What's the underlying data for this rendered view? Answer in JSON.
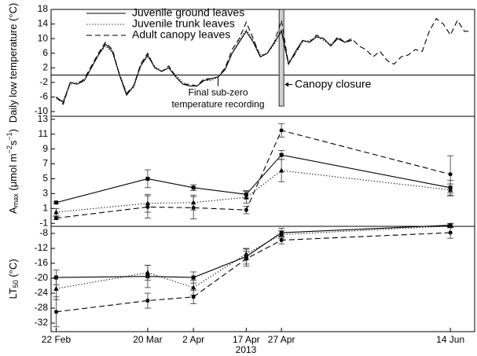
{
  "chart_data": [
    {
      "type": "line",
      "y_label": [
        {
          "text": "Daily low temperature (°C)"
        }
      ],
      "x": [
        "2013-02-22",
        "2013-02-24",
        "2013-02-26",
        "2013-02-28",
        "2013-03-02",
        "2013-03-04",
        "2013-03-06",
        "2013-03-08",
        "2013-03-10",
        "2013-03-12",
        "2013-03-14",
        "2013-03-16",
        "2013-03-18",
        "2013-03-20",
        "2013-03-22",
        "2013-03-24",
        "2013-03-26",
        "2013-03-28",
        "2013-03-30",
        "2013-04-01",
        "2013-04-03",
        "2013-04-05",
        "2013-04-07",
        "2013-04-09",
        "2013-04-11",
        "2013-04-13",
        "2013-04-15",
        "2013-04-17",
        "2013-04-19",
        "2013-04-21",
        "2013-04-23",
        "2013-04-25",
        "2013-04-27",
        "2013-04-29",
        "2013-05-01",
        "2013-05-03",
        "2013-05-05",
        "2013-05-07",
        "2013-05-09",
        "2013-05-11",
        "2013-05-13",
        "2013-05-15",
        "2013-05-17",
        "2013-05-19",
        "2013-05-21",
        "2013-05-23",
        "2013-05-25",
        "2013-05-27",
        "2013-05-29",
        "2013-05-31",
        "2013-06-02",
        "2013-06-04",
        "2013-06-06",
        "2013-06-08",
        "2013-06-10",
        "2013-06-12",
        "2013-06-14",
        "2013-06-16",
        "2013-06-18",
        "2013-06-20"
      ],
      "series": [
        {
          "name": "Juvenile ground leaves",
          "color": "#000000",
          "dash": "solid",
          "values": [
            -6,
            -7.5,
            -2,
            -2.5,
            -1.5,
            2,
            5.5,
            8.5,
            6.5,
            0,
            -5.5,
            -3,
            2.5,
            5.5,
            2,
            1,
            2,
            -0.5,
            -2.5,
            -3,
            -3,
            -1.5,
            -1,
            -0.5,
            1.5,
            6,
            9,
            12,
            9,
            5,
            6,
            9,
            12,
            3,
            6.5,
            9.5,
            9,
            10.5,
            10,
            8,
            10,
            9,
            9.5,
            null,
            null,
            null,
            null,
            null,
            null,
            null,
            null,
            null,
            null,
            null,
            null,
            null,
            null,
            null,
            null,
            null
          ]
        },
        {
          "name": "Juvenile trunk leaves",
          "color": "#000000",
          "dash": "dotted",
          "values": [
            -6.5,
            -7,
            -2.5,
            -2,
            -1.5,
            2,
            5.5,
            8,
            6,
            0.5,
            -5,
            -3.5,
            2.5,
            5,
            2.5,
            1,
            2,
            0,
            -2,
            -3,
            -3,
            -1.5,
            -1.5,
            -0.5,
            1.5,
            6,
            9.5,
            12.5,
            9.5,
            5.5,
            6,
            8.5,
            12.5,
            3.5,
            6,
            9,
            9.5,
            10.5,
            9.5,
            8.5,
            10,
            9,
            9.5,
            null,
            null,
            null,
            null,
            null,
            null,
            null,
            null,
            null,
            null,
            null,
            null,
            null,
            null,
            null,
            null,
            null
          ]
        },
        {
          "name": "Adult canopy leaves",
          "color": "#000000",
          "dash": "dashed",
          "values": [
            -6,
            -8,
            -2,
            -2.5,
            -1,
            2.5,
            6,
            9,
            7,
            0,
            -5,
            -3,
            3,
            6,
            2,
            1,
            2.5,
            -0.5,
            -2.5,
            -2.5,
            -3,
            -1,
            -1,
            -0.5,
            2,
            7,
            10,
            14.5,
            10,
            5,
            6,
            9,
            15,
            3,
            6,
            9.5,
            9,
            11,
            10,
            8,
            10.5,
            9,
            10,
            8,
            7,
            5,
            6.5,
            4,
            3,
            5,
            5.5,
            7,
            6.5,
            12,
            15.5,
            14,
            11,
            15,
            12,
            12
          ]
        }
      ],
      "reference_line": 0,
      "annotations": [
        {
          "text": [
            "Final sub-zero",
            "temperature recording"
          ],
          "x": "2013-04-09"
        },
        {
          "text": [
            "Canopy closure"
          ],
          "x": "2013-04-27"
        }
      ],
      "xlim": [
        "2013-02-21",
        "2013-06-20"
      ],
      "ylim": [
        -11.3,
        18
      ],
      "yticks": [
        18,
        14,
        10,
        6,
        2,
        -2,
        -6,
        -10
      ]
    },
    {
      "type": "line",
      "y_label": [
        {
          "text": "A"
        },
        {
          "text": "max",
          "sub": true
        },
        {
          "text": " (μmol m"
        },
        {
          "text": "−2",
          "sup": true
        },
        {
          "text": "s"
        },
        {
          "text": "−1",
          "sup": true
        },
        {
          "text": ")"
        }
      ],
      "x": [
        "2013-02-22",
        "2013-03-20",
        "2013-04-02",
        "2013-04-17",
        "2013-04-27",
        "2013-06-14"
      ],
      "series": [
        {
          "color": "#000000",
          "dash": "solid",
          "marker": "square",
          "values": [
            1.8,
            5.0,
            3.8,
            2.9,
            8.2,
            3.8
          ],
          "errors": [
            0.1,
            1.2,
            0.4,
            0.5,
            0.6,
            1.0
          ]
        },
        {
          "color": "#000000",
          "dash": "dotted",
          "marker": "triangle",
          "values": [
            0.5,
            1.7,
            1.8,
            2.5,
            6.1,
            3.5
          ],
          "errors": [
            0.5,
            1.2,
            1.0,
            0.8,
            1.5,
            0.8
          ]
        },
        {
          "color": "#000000",
          "dash": "dashed",
          "marker": "circle",
          "values": [
            -0.3,
            1.2,
            1.1,
            0.8,
            11.5,
            5.6
          ],
          "errors": [
            0.2,
            1.5,
            1.5,
            0.5,
            0.9,
            2.5
          ]
        }
      ],
      "xlim": [
        "2013-02-21",
        "2013-06-20"
      ],
      "ylim": [
        -1.4,
        13.4
      ],
      "yticks": [
        13,
        11,
        9,
        7,
        5,
        3,
        1,
        -1
      ]
    },
    {
      "type": "line",
      "y_label": [
        {
          "text": "LT"
        },
        {
          "text": "50",
          "sub": true
        },
        {
          "text": " (°C)"
        }
      ],
      "x": [
        "2013-02-22",
        "2013-03-20",
        "2013-04-02",
        "2013-04-17",
        "2013-04-27",
        "2013-06-14"
      ],
      "series": [
        {
          "color": "#000000",
          "dash": "solid",
          "marker": "square",
          "values": [
            -19.8,
            -19.5,
            -19.8,
            -14.2,
            -7.8,
            -5.8
          ],
          "errors": [
            2,
            3,
            1.5,
            2,
            1.2,
            0.5
          ]
        },
        {
          "color": "#000000",
          "dash": "dotted",
          "marker": "triangle",
          "values": [
            -22.8,
            -18.5,
            -22.5,
            -13.5,
            -8.3,
            -6.0
          ],
          "errors": [
            3,
            2,
            2,
            1.5,
            1,
            0.5
          ]
        },
        {
          "color": "#000000",
          "dash": "dashed",
          "marker": "circle",
          "values": [
            -29,
            -26,
            -25,
            -14.8,
            -9.8,
            -7.8
          ],
          "errors": [
            4,
            2,
            1.8,
            2,
            1,
            1.5
          ]
        }
      ],
      "xlim": [
        "2013-02-21",
        "2013-06-20"
      ],
      "ylim": [
        -34.3,
        -6.1
      ],
      "yticks": [
        -8,
        -12,
        -16,
        -20,
        -24,
        -28,
        -32
      ],
      "xticks": [
        {
          "value": "2013-02-22",
          "label": "22 Feb"
        },
        {
          "value": "2013-03-20",
          "label": "20 Mar"
        },
        {
          "value": "2013-04-02",
          "label": "2 Apr"
        },
        {
          "value": "2013-04-17",
          "label": "17 Apr"
        },
        {
          "value": "2013-04-27",
          "label": "27 Apr"
        },
        {
          "value": "2013-06-14",
          "label": "14 Jun"
        }
      ],
      "x_label": "2013"
    }
  ]
}
